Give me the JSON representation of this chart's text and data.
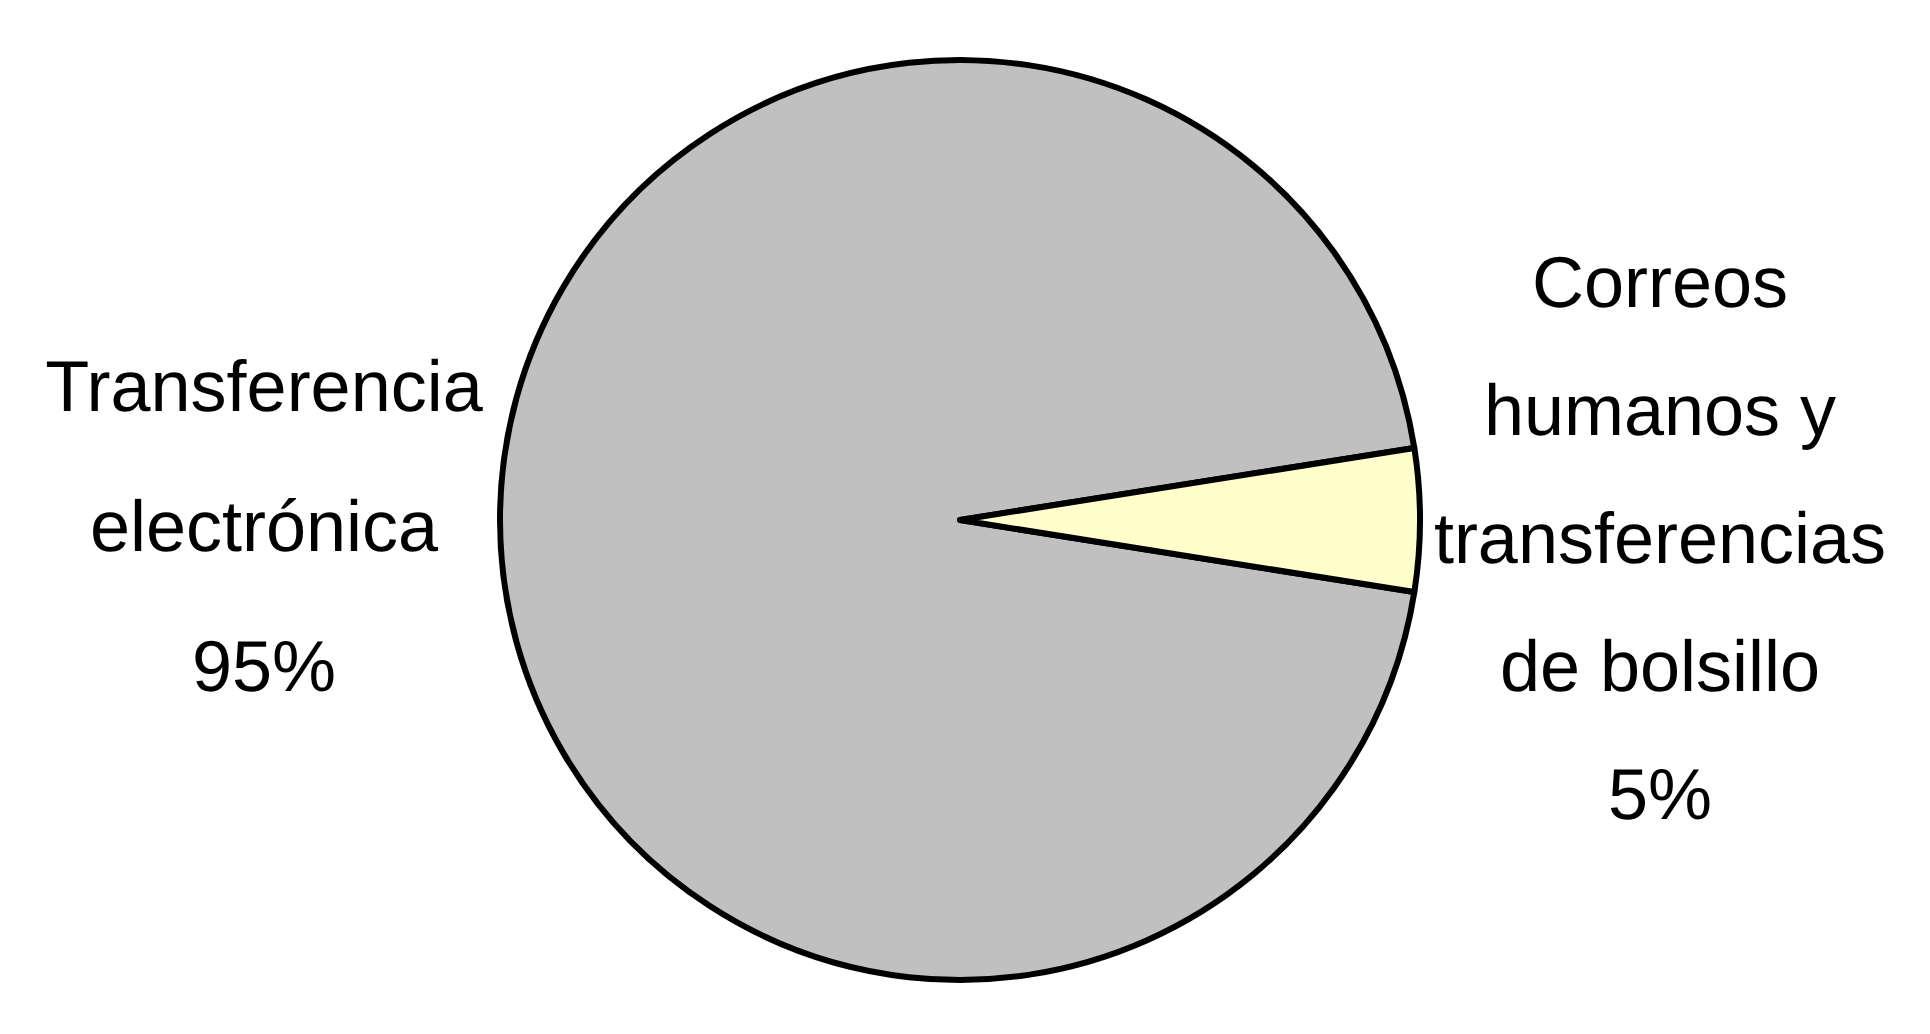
{
  "chart_data": {
    "type": "pie",
    "categories": [
      "Transferencia electrónica",
      "Correos humanos y transferencias de bolsillo"
    ],
    "values": [
      95,
      5
    ],
    "colors": [
      "#c0c0c0",
      "#ffffcc"
    ],
    "value_labels": [
      "95%",
      "5%"
    ]
  }
}
